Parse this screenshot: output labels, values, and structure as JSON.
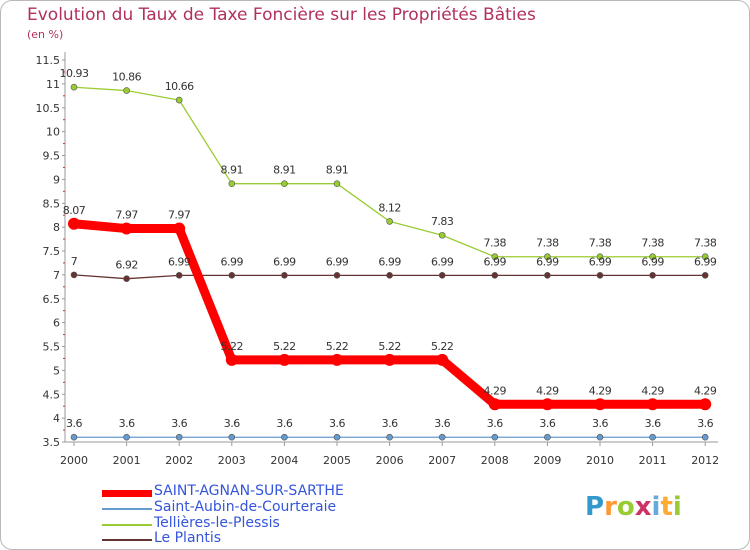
{
  "chart_data": {
    "type": "line",
    "title": "Evolution du Taux de Taxe Foncière sur les Propriétés Bâties",
    "subtitle": "(en %)",
    "x": [
      "2000",
      "2001",
      "2002",
      "2003",
      "2004",
      "2005",
      "2006",
      "2007",
      "2008",
      "2009",
      "2010",
      "2011",
      "2012"
    ],
    "ylim": [
      3.5,
      11.5
    ],
    "yticks": [
      "3.5",
      "4",
      "4.5",
      "5",
      "5.5",
      "6",
      "6.5",
      "7",
      "7.5",
      "8",
      "8.5",
      "9",
      "9.5",
      "10",
      "10.5",
      "11",
      "11.5"
    ],
    "series": [
      {
        "name": "SAINT-AGNAN-SUR-SARTHE",
        "color": "#ff0000",
        "values": [
          8.07,
          7.97,
          7.97,
          5.22,
          5.22,
          5.22,
          5.22,
          5.22,
          4.29,
          4.29,
          4.29,
          4.29,
          4.29
        ],
        "labels": [
          "8.07",
          "7.97",
          "7.97",
          "5.22",
          "5.22",
          "5.22",
          "5.22",
          "5.22",
          "4.29",
          "4.29",
          "4.29",
          "4.29",
          "4.29"
        ]
      },
      {
        "name": "Saint-Aubin-de-Courteraie",
        "color": "#6699cc",
        "values": [
          3.6,
          3.6,
          3.6,
          3.6,
          3.6,
          3.6,
          3.6,
          3.6,
          3.6,
          3.6,
          3.6,
          3.6,
          3.6
        ],
        "labels": [
          "3.6",
          "3.6",
          "3.6",
          "3.6",
          "3.6",
          "3.6",
          "3.6",
          "3.6",
          "3.6",
          "3.6",
          "3.6",
          "3.6",
          "3.6"
        ]
      },
      {
        "name": "Tellières-le-Plessis",
        "color": "#99cc33",
        "values": [
          10.93,
          10.86,
          10.66,
          8.91,
          8.91,
          8.91,
          8.12,
          7.83,
          7.38,
          7.38,
          7.38,
          7.38,
          7.38
        ],
        "labels": [
          "10.93",
          "10.86",
          "10.66",
          "8.91",
          "8.91",
          "8.91",
          "8.12",
          "7.83",
          "7.38",
          "7.38",
          "7.38",
          "7.38",
          "7.38"
        ]
      },
      {
        "name": "Le Plantis",
        "color": "#663333",
        "values": [
          7,
          6.92,
          6.99,
          6.99,
          6.99,
          6.99,
          6.99,
          6.99,
          6.99,
          6.99,
          6.99,
          6.99,
          6.99
        ],
        "labels": [
          "7",
          "6.92",
          "6.99",
          "6.99",
          "6.99",
          "6.99",
          "6.99",
          "6.99",
          "6.99",
          "6.99",
          "6.99",
          "6.99",
          "6.99"
        ]
      }
    ],
    "legend": [
      "SAINT-AGNAN-SUR-SARTHE",
      "Saint-Aubin-de-Courteraie",
      "Tellières-le-Plessis",
      "Le Plantis"
    ]
  },
  "logo": {
    "text": "Proxiti",
    "letters": [
      "P",
      "r",
      "o",
      "x",
      "i",
      "t",
      "i"
    ],
    "colors": [
      "#3399cc",
      "#ff9933",
      "#99cc33",
      "#cc3366",
      "#66aadd",
      "#ffaa33",
      "#99cc33"
    ]
  }
}
